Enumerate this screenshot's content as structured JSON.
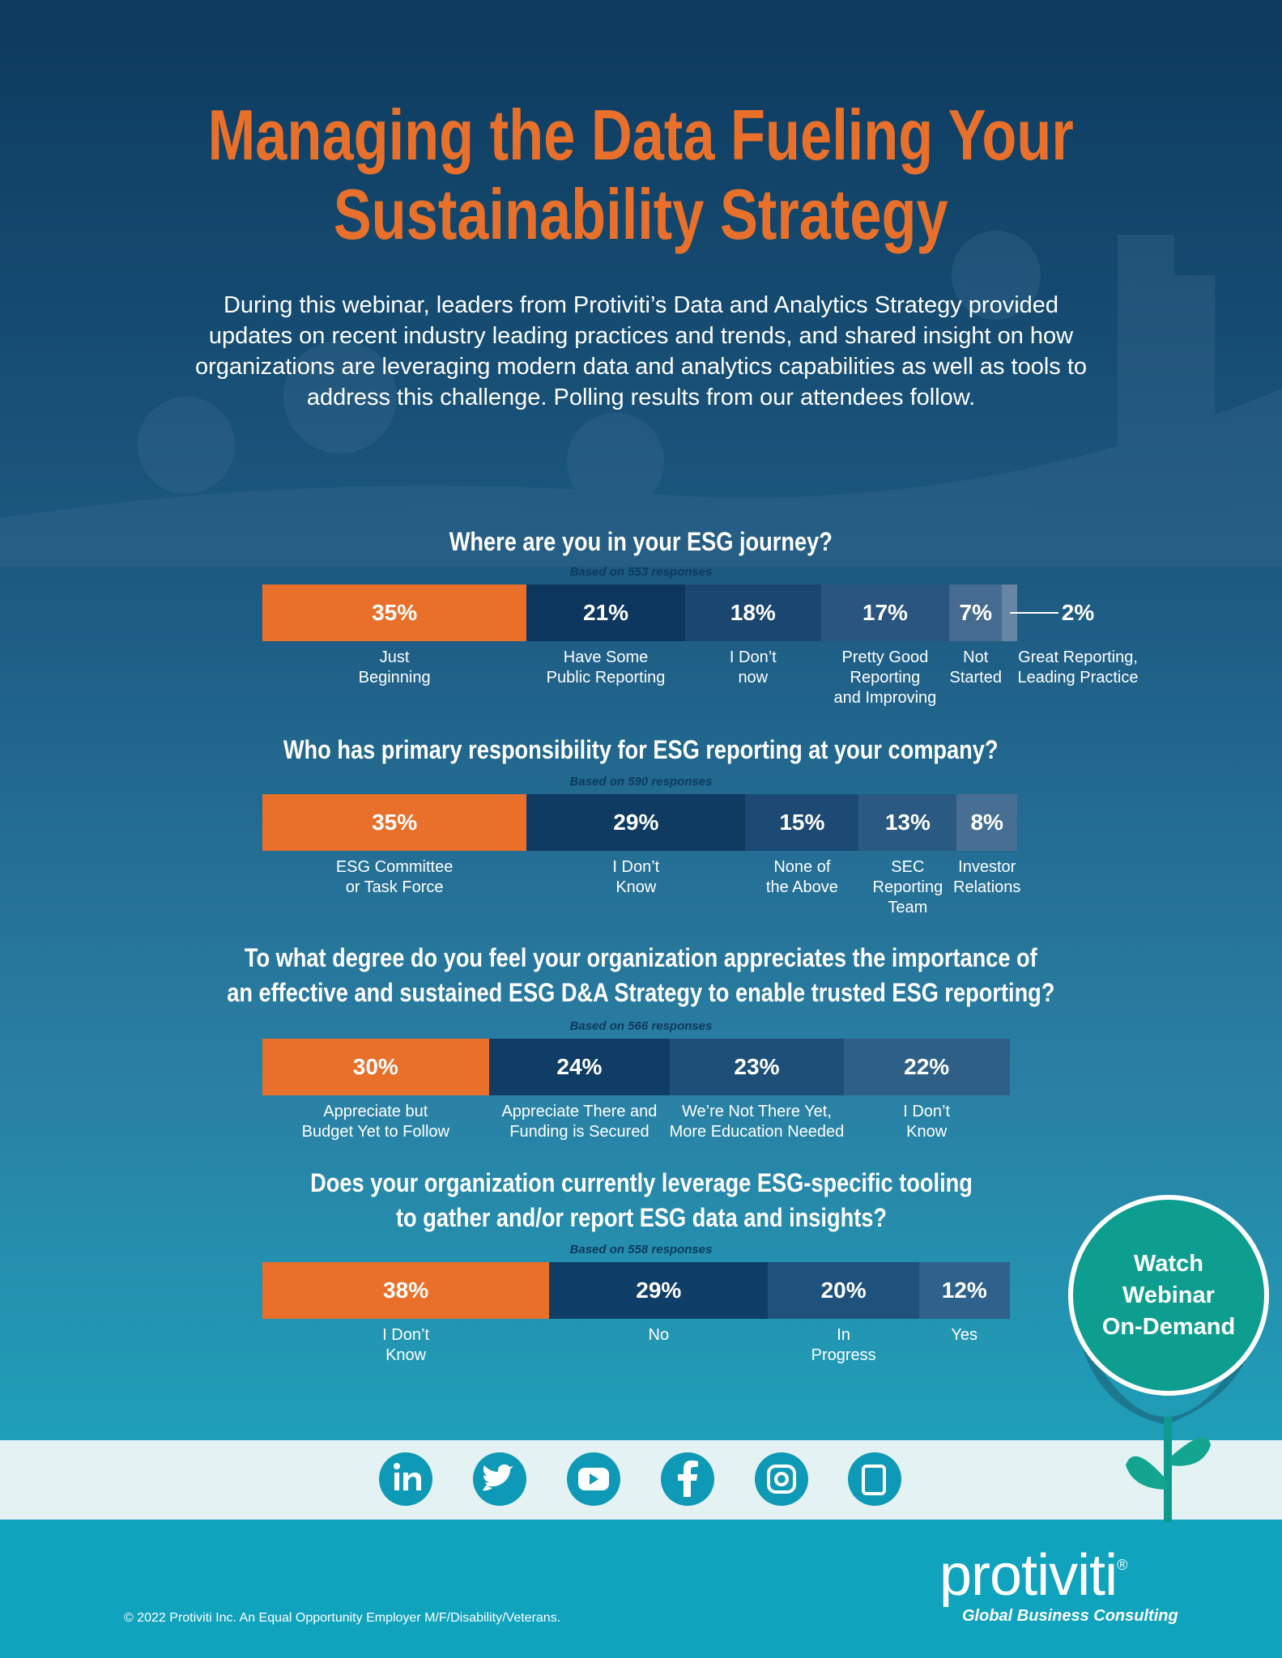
{
  "header": {
    "title": "Managing the Data Fueling Your\nSustainability Strategy",
    "intro": "During this webinar, leaders from Protiviti’s Data and Analytics Strategy provided updates on recent industry leading practices and trends, and shared insight on how organizations are leveraging modern data and analytics capabilities as well as tools to address this challenge. Polling results from our attendees follow."
  },
  "chart_data": [
    {
      "type": "bar",
      "title": "Where are you in your ESG journey?",
      "subtitle": "Based on 553 responses",
      "categories": [
        "Just\nBeginning",
        "Have Some\nPublic Reporting",
        "I Don’t\nnow",
        "Pretty Good\nReporting\nand Improving",
        "Not\nStarted",
        "Great Reporting,\nLeading Practice"
      ],
      "values": [
        35,
        21,
        18,
        17,
        7,
        2
      ],
      "value_labels": [
        "35%",
        "21%",
        "18%",
        "17%",
        "7%",
        "2%"
      ],
      "colors": [
        "#e8702a",
        "#0e3760",
        "#1b4670",
        "#2a5580",
        "#466b90",
        "#6786a5"
      ]
    },
    {
      "type": "bar",
      "title": "Who has primary responsibility for ESG reporting at your company?",
      "subtitle": "Based on 590 responses",
      "categories": [
        "ESG Committee\nor Task Force",
        "I Don’t\nKnow",
        "None of\nthe Above",
        "SEC\nReporting\nTeam",
        "Investor\nRelations"
      ],
      "values": [
        35,
        29,
        15,
        13,
        8
      ],
      "value_labels": [
        "35%",
        "29%",
        "15%",
        "13%",
        "8%"
      ],
      "colors": [
        "#e8702a",
        "#0f3b63",
        "#1c4a74",
        "#2a5a82",
        "#476f93"
      ]
    },
    {
      "type": "bar",
      "title": "To what degree do you feel your organization appreciates the importance of\nan effective and sustained ESG D&A Strategy to enable trusted ESG reporting?",
      "subtitle": "Based on 566 responses",
      "categories": [
        "Appreciate but\nBudget Yet to Follow",
        "Appreciate There and\nFunding is Secured",
        "We’re Not There Yet,\nMore Education Needed",
        "I Don’t\nKnow"
      ],
      "values": [
        30,
        24,
        23,
        22
      ],
      "value_labels": [
        "30%",
        "24%",
        "23%",
        "22%"
      ],
      "colors": [
        "#e8702a",
        "#0f3d66",
        "#1d4f79",
        "#2d5f87"
      ]
    },
    {
      "type": "bar",
      "title": "Does your organization currently leverage ESG-specific tooling\nto gather and/or report ESG data and insights?",
      "subtitle": "Based on 558 responses",
      "categories": [
        "I Don’t\nKnow",
        "No",
        "In\nProgress",
        "Yes"
      ],
      "values": [
        38,
        29,
        20,
        12
      ],
      "value_labels": [
        "38%",
        "29%",
        "20%",
        "12%"
      ],
      "colors": [
        "#e8702a",
        "#0f3e68",
        "#1e517c",
        "#2e618b"
      ]
    }
  ],
  "cta": "Watch\nWebinar\nOn-Demand",
  "footer": {
    "logo": "protiviti",
    "logo_mark": "®",
    "tagline": "Global Business Consulting",
    "copyright": "© 2022 Protiviti Inc. An Equal Opportunity Employer M/F/Disability/Veterans."
  }
}
